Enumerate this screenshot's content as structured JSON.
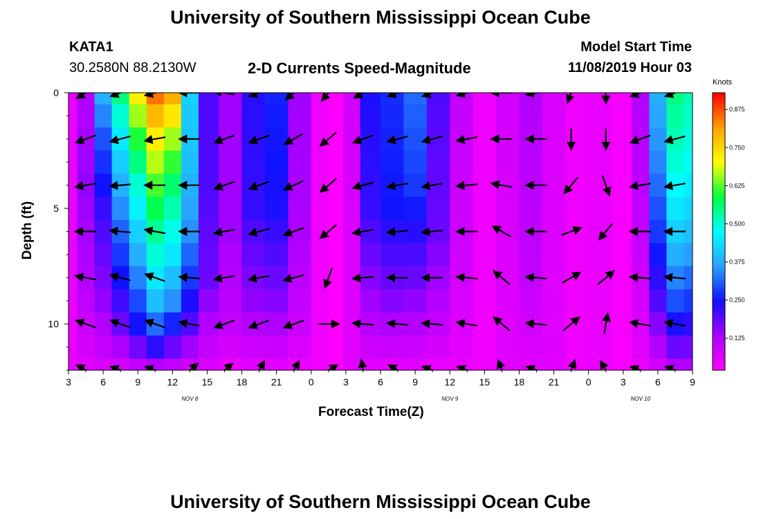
{
  "header": {
    "title_top": "University of Southern Mississippi Ocean Cube",
    "title_bottom": "University of Southern Mississippi Ocean Cube",
    "station": "KATA1",
    "coords": "30.2580N 88.2130W",
    "plot_title": "2-D Currents Speed-Magnitude",
    "model_label": "Model Start Time",
    "model_time": "11/08/2019 Hour 03"
  },
  "chart_data": {
    "type": "heatmap",
    "title": "2-D Currents Speed-Magnitude",
    "xlabel": "Forecast Time(Z)",
    "ylabel": "Depth (ft)",
    "x_tick_labels": [
      "3",
      "6",
      "9",
      "12",
      "15",
      "18",
      "21",
      "0",
      "3",
      "6",
      "9",
      "12",
      "15",
      "18",
      "21",
      "0",
      "3",
      "6",
      "9"
    ],
    "x_hours": [
      0,
      3,
      6,
      9,
      12,
      15,
      18,
      21,
      24,
      27,
      30,
      33,
      36,
      39,
      42,
      45,
      48,
      51,
      54
    ],
    "day_labels": [
      {
        "label": "NOV 8",
        "hour": 10.5
      },
      {
        "label": "NOV 9",
        "hour": 33
      },
      {
        "label": "NOV 10",
        "hour": 49.5
      }
    ],
    "y_tick_labels": [
      "0",
      "5",
      "10"
    ],
    "y_ticks": [
      0,
      5,
      10
    ],
    "ylim": [
      0,
      12
    ],
    "colorbar": {
      "title": "Knots",
      "ticks": [
        0.125,
        0.25,
        0.375,
        0.5,
        0.625,
        0.75,
        0.875
      ],
      "tick_labels": [
        "0.125",
        "0.250",
        "0.375",
        "0.500",
        "0.625",
        "0.750",
        "0.875"
      ],
      "range": [
        0.02,
        0.93
      ],
      "colors": [
        "#ff00ff",
        "#aa00ff",
        "#1010ff",
        "#2aa0ff",
        "#00ffff",
        "#00ff40",
        "#ffff00",
        "#ffa000",
        "#ff0000"
      ]
    },
    "depth_levels_ft": [
      0,
      1,
      2,
      3,
      4,
      5,
      6,
      7,
      8,
      9,
      10,
      11,
      12
    ],
    "speed_columns": [
      {
        "hour": 0,
        "profile": [
          [
            0,
            0.05
          ],
          [
            12,
            0.05
          ]
        ]
      },
      {
        "hour": 1.5,
        "profile": [
          [
            0,
            0.12
          ],
          [
            4,
            0.15
          ],
          [
            8,
            0.12
          ],
          [
            12,
            0.06
          ]
        ]
      },
      {
        "hour": 3,
        "profile": [
          [
            0,
            0.38
          ],
          [
            2,
            0.3
          ],
          [
            5,
            0.22
          ],
          [
            9,
            0.15
          ],
          [
            12,
            0.07
          ]
        ]
      },
      {
        "hour": 4.5,
        "profile": [
          [
            0,
            0.55
          ],
          [
            2,
            0.45
          ],
          [
            4,
            0.38
          ],
          [
            7,
            0.28
          ],
          [
            10,
            0.18
          ],
          [
            12,
            0.08
          ]
        ]
      },
      {
        "hour": 6,
        "profile": [
          [
            0,
            0.72
          ],
          [
            2,
            0.6
          ],
          [
            4,
            0.5
          ],
          [
            7,
            0.38
          ],
          [
            10,
            0.25
          ],
          [
            12,
            0.1
          ]
        ]
      },
      {
        "hour": 7.5,
        "profile": [
          [
            0,
            0.85
          ],
          [
            2,
            0.72
          ],
          [
            4,
            0.62
          ],
          [
            7,
            0.5
          ],
          [
            9,
            0.4
          ],
          [
            10.5,
            0.28
          ],
          [
            12,
            0.12
          ]
        ]
      },
      {
        "hour": 9,
        "profile": [
          [
            0,
            0.8
          ],
          [
            2,
            0.66
          ],
          [
            4,
            0.56
          ],
          [
            7,
            0.45
          ],
          [
            9,
            0.35
          ],
          [
            10.5,
            0.22
          ],
          [
            12,
            0.1
          ]
        ]
      },
      {
        "hour": 10.5,
        "profile": [
          [
            0,
            0.42
          ],
          [
            3,
            0.4
          ],
          [
            6,
            0.35
          ],
          [
            8,
            0.28
          ],
          [
            10,
            0.2
          ],
          [
            12,
            0.08
          ]
        ]
      },
      {
        "hour": 12,
        "profile": [
          [
            0,
            0.2
          ],
          [
            4,
            0.2
          ],
          [
            8,
            0.18
          ],
          [
            12,
            0.07
          ]
        ]
      },
      {
        "hour": 14,
        "profile": [
          [
            0,
            0.14
          ],
          [
            6,
            0.14
          ],
          [
            10,
            0.1
          ],
          [
            12,
            0.05
          ]
        ]
      },
      {
        "hour": 16,
        "profile": [
          [
            0,
            0.23
          ],
          [
            5,
            0.22
          ],
          [
            9,
            0.15
          ],
          [
            12,
            0.06
          ]
        ]
      },
      {
        "hour": 18,
        "profile": [
          [
            0,
            0.26
          ],
          [
            5,
            0.24
          ],
          [
            9,
            0.16
          ],
          [
            12,
            0.06
          ]
        ]
      },
      {
        "hour": 20,
        "profile": [
          [
            0,
            0.14
          ],
          [
            6,
            0.13
          ],
          [
            10,
            0.09
          ],
          [
            12,
            0.05
          ]
        ]
      },
      {
        "hour": 22,
        "profile": [
          [
            0,
            0.04
          ],
          [
            12,
            0.04
          ]
        ]
      },
      {
        "hour": 23,
        "profile": [
          [
            0,
            0.02
          ],
          [
            12,
            0.02
          ]
        ]
      },
      {
        "hour": 24.5,
        "profile": [
          [
            0,
            0.08
          ],
          [
            12,
            0.06
          ]
        ]
      },
      {
        "hour": 26,
        "profile": [
          [
            0,
            0.24
          ],
          [
            5,
            0.22
          ],
          [
            9,
            0.14
          ],
          [
            12,
            0.06
          ]
        ]
      },
      {
        "hour": 28,
        "profile": [
          [
            0,
            0.27
          ],
          [
            5,
            0.25
          ],
          [
            9,
            0.16
          ],
          [
            12,
            0.06
          ]
        ]
      },
      {
        "hour": 30,
        "profile": [
          [
            0,
            0.32
          ],
          [
            4,
            0.28
          ],
          [
            8,
            0.18
          ],
          [
            12,
            0.06
          ]
        ]
      },
      {
        "hour": 32,
        "profile": [
          [
            0,
            0.2
          ],
          [
            6,
            0.18
          ],
          [
            10,
            0.1
          ],
          [
            12,
            0.05
          ]
        ]
      },
      {
        "hour": 34,
        "profile": [
          [
            0,
            0.1
          ],
          [
            8,
            0.08
          ],
          [
            12,
            0.05
          ]
        ]
      },
      {
        "hour": 36,
        "profile": [
          [
            0,
            0.04
          ],
          [
            12,
            0.04
          ]
        ]
      },
      {
        "hour": 38,
        "profile": [
          [
            0,
            0.08
          ],
          [
            12,
            0.06
          ]
        ]
      },
      {
        "hour": 40,
        "profile": [
          [
            0,
            0.12
          ],
          [
            8,
            0.1
          ],
          [
            12,
            0.06
          ]
        ]
      },
      {
        "hour": 42,
        "profile": [
          [
            0,
            0.07
          ],
          [
            12,
            0.06
          ]
        ]
      },
      {
        "hour": 44,
        "profile": [
          [
            0,
            0.04
          ],
          [
            12,
            0.04
          ]
        ]
      },
      {
        "hour": 46,
        "profile": [
          [
            0,
            0.05
          ],
          [
            12,
            0.05
          ]
        ]
      },
      {
        "hour": 48,
        "profile": [
          [
            0,
            0.03
          ],
          [
            12,
            0.03
          ]
        ]
      },
      {
        "hour": 49.5,
        "profile": [
          [
            0,
            0.12
          ],
          [
            6,
            0.1
          ],
          [
            12,
            0.05
          ]
        ]
      },
      {
        "hour": 51,
        "profile": [
          [
            0,
            0.38
          ],
          [
            3,
            0.34
          ],
          [
            6,
            0.28
          ],
          [
            9,
            0.2
          ],
          [
            12,
            0.08
          ]
        ]
      },
      {
        "hour": 52.5,
        "profile": [
          [
            0,
            0.55
          ],
          [
            3,
            0.5
          ],
          [
            6,
            0.42
          ],
          [
            9,
            0.3
          ],
          [
            12,
            0.12
          ]
        ]
      },
      {
        "hour": 54,
        "profile": [
          [
            0,
            0.52
          ],
          [
            3,
            0.48
          ],
          [
            6,
            0.4
          ],
          [
            9,
            0.28
          ],
          [
            12,
            0.12
          ]
        ]
      }
    ],
    "arrow_hours": [
      1.5,
      4.5,
      7.5,
      10.5,
      13.5,
      16.5,
      19.5,
      22.5,
      25.5,
      28.5,
      31.5,
      34.5,
      37.5,
      40.5,
      43.5,
      46.5,
      49.5,
      52.5
    ],
    "arrow_depths_ft": [
      0,
      2,
      4,
      6,
      8,
      10,
      12
    ],
    "arrow_directions_deg": [
      [
        210,
        200,
        195,
        180,
        170,
        200,
        220,
        230,
        210,
        200,
        200,
        195,
        180,
        190,
        250,
        270,
        200,
        200
      ],
      [
        200,
        195,
        190,
        180,
        200,
        200,
        210,
        220,
        200,
        195,
        195,
        190,
        180,
        180,
        270,
        270,
        200,
        195
      ],
      [
        190,
        185,
        180,
        180,
        200,
        200,
        205,
        220,
        195,
        190,
        190,
        185,
        170,
        180,
        230,
        290,
        190,
        190
      ],
      [
        180,
        175,
        170,
        180,
        190,
        195,
        200,
        220,
        190,
        185,
        185,
        180,
        150,
        180,
        20,
        230,
        180,
        180
      ],
      [
        170,
        165,
        160,
        175,
        190,
        190,
        195,
        250,
        185,
        180,
        180,
        175,
        140,
        175,
        30,
        40,
        175,
        175
      ],
      [
        160,
        160,
        160,
        170,
        200,
        200,
        200,
        0,
        175,
        175,
        175,
        170,
        140,
        175,
        40,
        80,
        170,
        170
      ],
      [
        150,
        160,
        160,
        40,
        40,
        60,
        60,
        30,
        100,
        150,
        160,
        160,
        110,
        160,
        70,
        120,
        160,
        160
      ]
    ]
  }
}
